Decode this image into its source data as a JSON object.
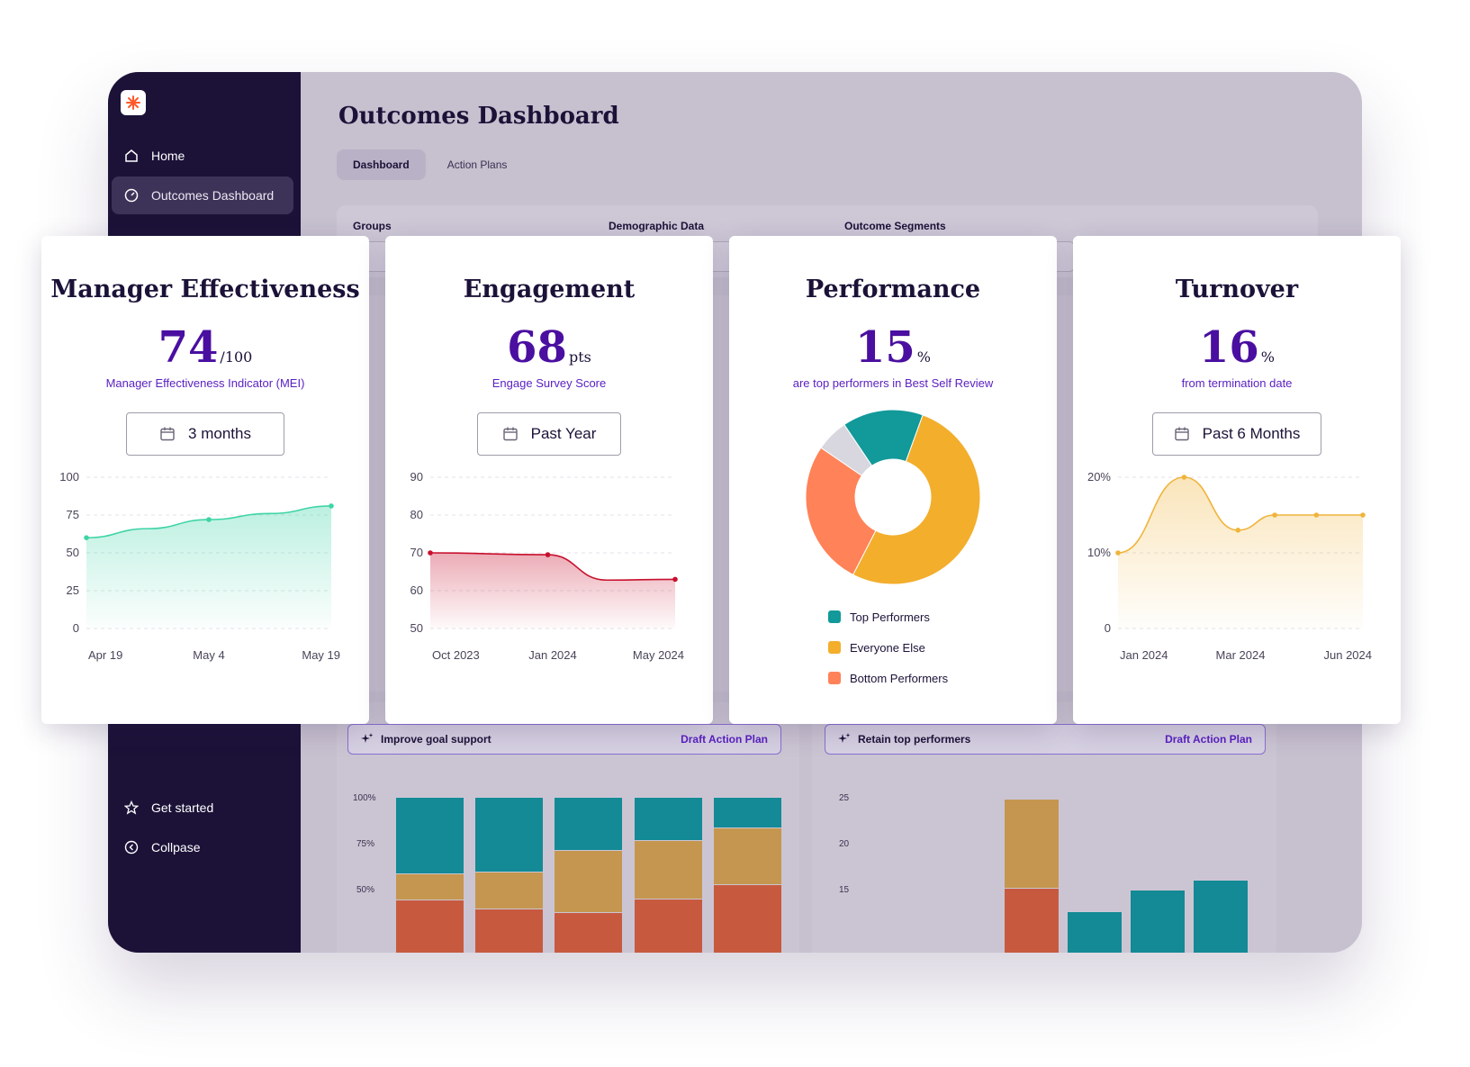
{
  "sidebar": {
    "items": [
      {
        "label": "Home",
        "icon": "home-icon"
      },
      {
        "label": "Outcomes Dashboard",
        "icon": "gauge-icon",
        "active": true
      }
    ],
    "bottom_items": [
      {
        "label": "Get started",
        "icon": "star-icon"
      },
      {
        "label": "Collpase",
        "icon": "chevron-left-circle-icon"
      }
    ]
  },
  "main": {
    "title": "Outcomes Dashboard",
    "tabs": [
      {
        "label": "Dashboard"
      },
      {
        "label": "Action Plans"
      }
    ],
    "filters": {
      "groups_label": "Groups",
      "demographic_label": "Demographic Data",
      "segments_label": "Outcome Segments"
    },
    "action_bars": [
      {
        "label": "Improve goal support",
        "link": "Draft Action Plan"
      },
      {
        "label": "Retain top performers",
        "link": "Draft Action Plan"
      }
    ],
    "bg_chart_left_ticks": [
      "100%",
      "75%",
      "50%"
    ],
    "bg_chart_right_ticks": [
      "25",
      "20",
      "15"
    ]
  },
  "cards": [
    {
      "title": "Manager Effectiveness",
      "value": "74",
      "unit": "/100",
      "subtitle": "Manager Effectiveness Indicator (MEI)",
      "range": "3 months"
    },
    {
      "title": "Engagement",
      "value": "68",
      "unit": "pts",
      "subtitle": "Engage Survey Score",
      "range": "Past Year"
    },
    {
      "title": "Performance",
      "value": "15",
      "unit": "%",
      "subtitle": "are top performers in Best Self Review"
    },
    {
      "title": "Turnover",
      "value": "16",
      "unit": "%",
      "subtitle": "from termination date",
      "range": "Past 6 Months"
    }
  ],
  "colors": {
    "teal": "#12999a",
    "amber": "#f3ae2c",
    "coral": "#ff8258",
    "gray": "#d8d6de",
    "green": "#3ed4a6",
    "red": "#c8102e",
    "orange_line": "#f0b43c",
    "purple": "#4a0fa0"
  },
  "chart_data": [
    {
      "type": "area",
      "x": [
        "Apr 19",
        "",
        "May 4",
        "",
        "May 19"
      ],
      "values": [
        60,
        66,
        72,
        76,
        81
      ],
      "yticks": [
        "100",
        "75",
        "50",
        "25",
        "0"
      ],
      "xticks": [
        "Apr 19",
        "May 4",
        "May 19"
      ],
      "ylim": [
        0,
        100
      ]
    },
    {
      "type": "area",
      "x": [
        "Oct 2023",
        "Jan 2024",
        "",
        "May 2024"
      ],
      "values": [
        70,
        69.5,
        62.8,
        63
      ],
      "yticks": [
        "90",
        "80",
        "70",
        "60",
        "50"
      ],
      "xticks": [
        "Oct 2023",
        "Jan 2024",
        "May 2024"
      ],
      "ylim": [
        50,
        90
      ]
    },
    {
      "type": "pie",
      "categories": [
        "Top Performers",
        "Everyone Else",
        "Bottom Performers"
      ],
      "values": [
        15,
        52,
        27
      ],
      "other": 6
    },
    {
      "type": "area",
      "x": [
        "Jan 2024",
        "",
        "Mar 2024",
        "",
        "",
        "Jun 2024"
      ],
      "values": [
        10,
        20,
        13,
        15,
        15,
        15
      ],
      "yticks": [
        "20%",
        "10%",
        "0"
      ],
      "xticks": [
        "Jan 2024",
        "Mar 2024",
        "Jun 2024"
      ],
      "ylim": [
        0,
        20
      ]
    }
  ]
}
